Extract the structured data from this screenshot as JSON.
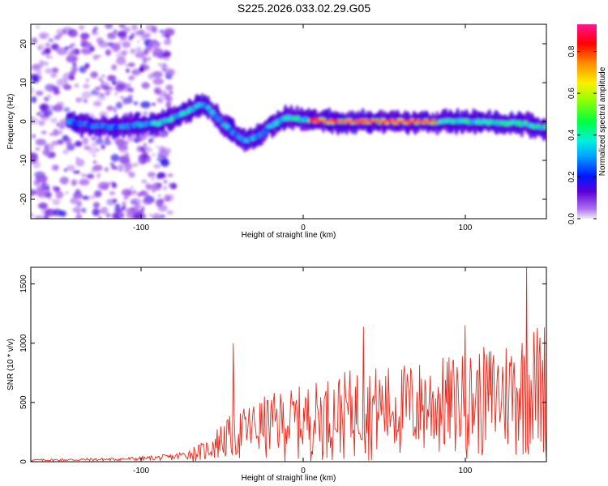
{
  "title": "S225.2026.033.02.29.G05",
  "chart_data": [
    {
      "type": "heatmap",
      "xlabel": "Height of straight line (km)",
      "ylabel": "Frequency (Hz)",
      "xlim": [
        -168,
        150
      ],
      "ylim": [
        -25,
        25
      ],
      "x_ticks": [
        -100,
        0,
        100
      ],
      "y_ticks": [
        -20,
        -10,
        0,
        10,
        20
      ],
      "colorbar": {
        "label": "Normalized spectral amplitude",
        "range": [
          0,
          0.93
        ],
        "ticks": [
          0.0,
          0.2,
          0.4,
          0.6,
          0.8
        ],
        "colormap": [
          "#f0f0f0",
          "#8a2be2",
          "#4000ff",
          "#0050ff",
          "#00e0ff",
          "#00ff60",
          "#d0ff00",
          "#ffe000",
          "#ff8000",
          "#ff0000",
          "#ff1493"
        ]
      },
      "ridge": {
        "x": [
          -145,
          -130,
          -118,
          -105,
          -90,
          -80,
          -70,
          -62,
          -55,
          -48,
          -42,
          -36,
          -30,
          -25,
          -20,
          -15,
          -10,
          0,
          20,
          40,
          60,
          80,
          100,
          120,
          135,
          148
        ],
        "y": [
          0,
          -1,
          -1.5,
          -1,
          -0.5,
          1,
          3,
          4.5,
          2,
          -1,
          -3,
          -5,
          -4,
          -3,
          -1,
          0,
          1,
          0.5,
          0,
          0,
          0,
          0,
          0,
          -0.3,
          -0.5,
          -1.5
        ]
      }
    },
    {
      "type": "line",
      "xlabel": "Height of straight line (km)",
      "ylabel": "SNR (10 * v/v)",
      "xlim": [
        -168,
        150
      ],
      "ylim": [
        0,
        1640
      ],
      "x_ticks": [
        -100,
        0,
        100
      ],
      "y_ticks": [
        0,
        500,
        1000,
        1500
      ],
      "series": [
        {
          "color": "#e8291c",
          "envelope": {
            "x": [
              -168,
              -120,
              -100,
              -80,
              -60,
              -50,
              -40,
              -30,
              -20,
              -10,
              0,
              10,
              20,
              30,
              40,
              60,
              80,
              100,
              120,
              140,
              150
            ],
            "y": [
              20,
              30,
              40,
              60,
              150,
              300,
              380,
              450,
              500,
              530,
              560,
              600,
              640,
              680,
              700,
              720,
              760,
              800,
              880,
              1000,
              1050
            ]
          },
          "peaks": [
            {
              "x": -43,
              "y": 1000
            },
            {
              "x": 37,
              "y": 1140
            },
            {
              "x": 100,
              "y": 1150
            },
            {
              "x": 138,
              "y": 1640
            }
          ]
        }
      ]
    }
  ]
}
